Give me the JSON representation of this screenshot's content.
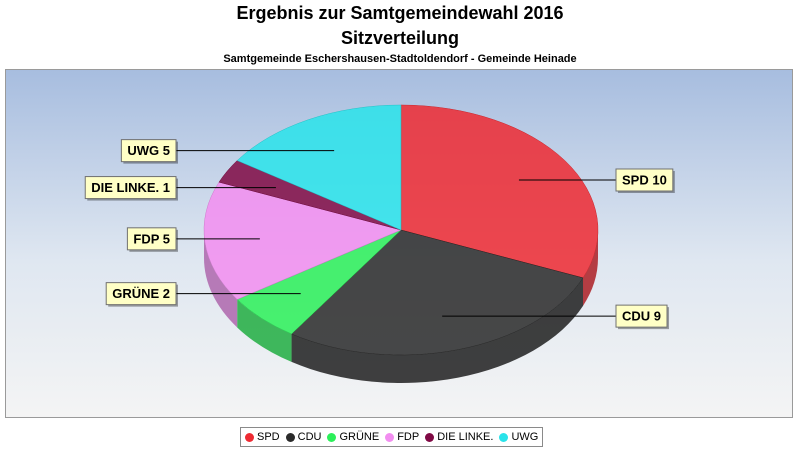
{
  "header": {
    "title": "Ergebnis zur Samtgemeindewahl 2016",
    "subtitle": "Sitzverteilung",
    "caption": "Samtgemeinde Eschershausen-Stadtoldendorf - Gemeinde Heinade"
  },
  "chart_data": {
    "type": "pie",
    "title": "Ergebnis zur Samtgemeindewahl 2016",
    "subtitle": "Sitzverteilung",
    "categories": [
      "SPD",
      "CDU",
      "GRÜNE",
      "FDP",
      "DIE LINKE.",
      "UWG"
    ],
    "values": [
      10,
      9,
      2,
      5,
      1,
      5
    ],
    "labels": [
      "SPD 10",
      "CDU 9",
      "GRÜNE 2",
      "FDP 5",
      "DIE LINKE. 1",
      "UWG 5"
    ],
    "colors": [
      "#ee2b33",
      "#2b2b2b",
      "#2cf05a",
      "#f28ef0",
      "#800a45",
      "#2ae3ea"
    ],
    "legend_position": "bottom",
    "style": "3d"
  },
  "legend": {
    "items": [
      {
        "label": "SPD",
        "color": "#ee2b33"
      },
      {
        "label": "CDU",
        "color": "#2b2b2b"
      },
      {
        "label": "GRÜNE",
        "color": "#2cf05a"
      },
      {
        "label": "FDP",
        "color": "#f28ef0"
      },
      {
        "label": "DIE LINKE.",
        "color": "#800a45"
      },
      {
        "label": "UWG",
        "color": "#2ae3ea"
      }
    ]
  }
}
